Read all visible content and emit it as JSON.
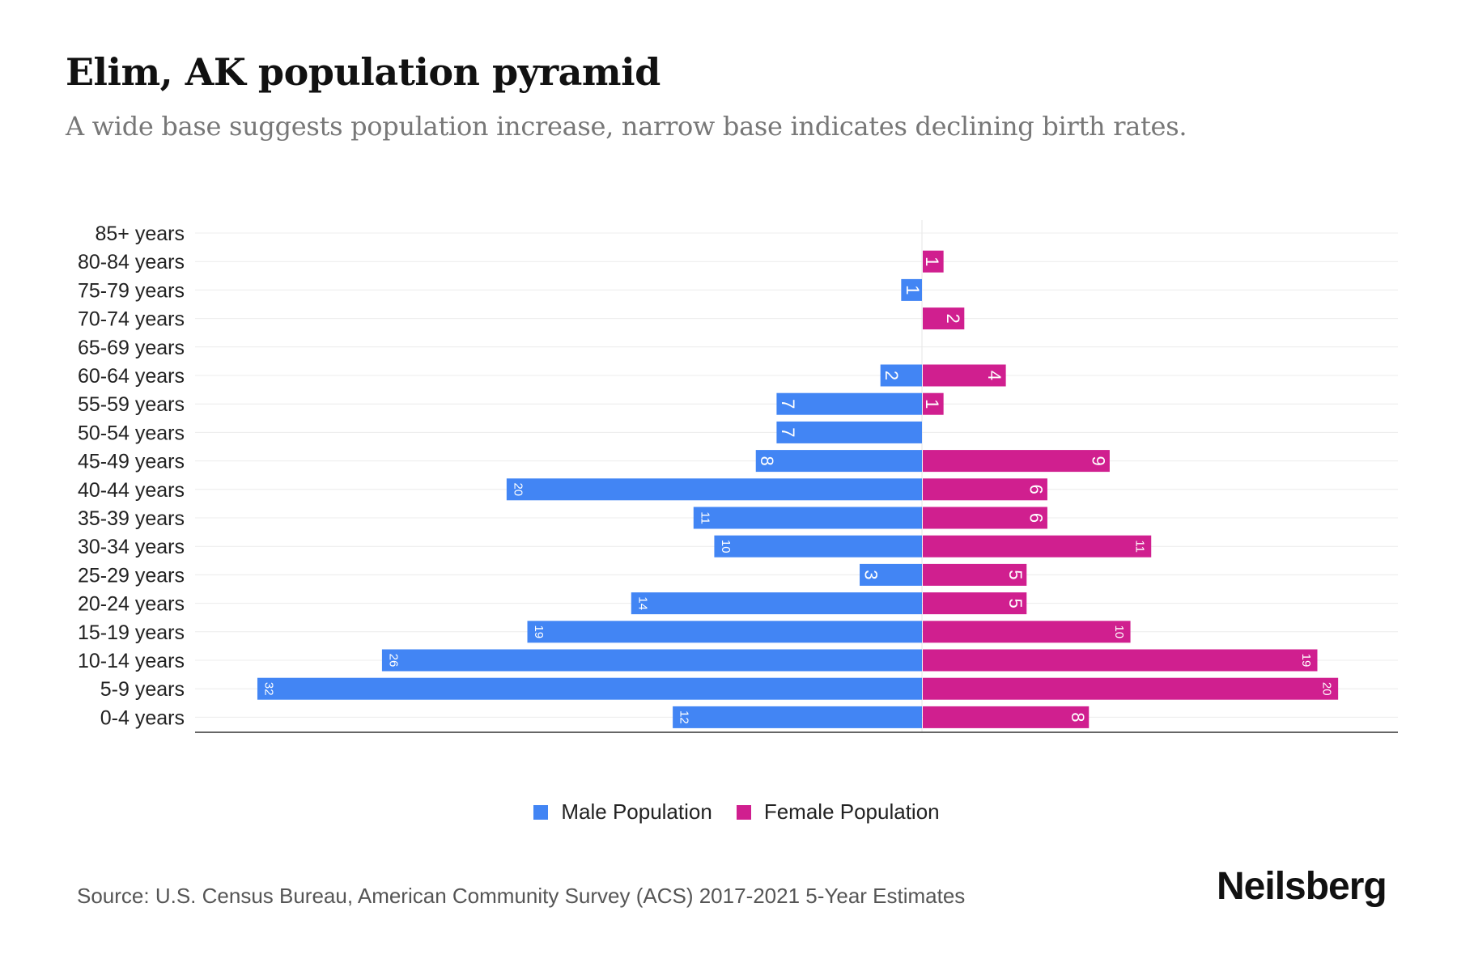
{
  "title": "Elim, AK population pyramid",
  "subtitle": "A wide base suggests population increase, narrow base indicates declining birth rates.",
  "source": "Source: U.S. Census Bureau, American Community Survey (ACS) 2017-2021 5-Year Estimates",
  "logo": "Neilsberg",
  "colors": {
    "male": "#4285f4",
    "female": "#d01f8f"
  },
  "chart_data": {
    "type": "bar",
    "orientation": "horizontal-pyramid",
    "title": "Elim, AK population pyramid",
    "categories": [
      "85+ years",
      "80-84 years",
      "75-79 years",
      "70-74 years",
      "65-69 years",
      "60-64 years",
      "55-59 years",
      "50-54 years",
      "45-49 years",
      "40-44 years",
      "35-39 years",
      "30-34 years",
      "25-29 years",
      "20-24 years",
      "15-19 years",
      "10-14 years",
      "5-9 years",
      "0-4 years"
    ],
    "series": [
      {
        "name": "Male Population",
        "values": [
          0,
          0,
          1,
          0,
          0,
          2,
          7,
          7,
          8,
          20,
          11,
          10,
          3,
          14,
          19,
          26,
          32,
          12
        ]
      },
      {
        "name": "Female Population",
        "values": [
          0,
          1,
          0,
          2,
          0,
          4,
          1,
          0,
          9,
          6,
          6,
          11,
          5,
          5,
          10,
          19,
          20,
          8
        ]
      }
    ],
    "xlim": [
      -35,
      23
    ],
    "grid": true,
    "legend": "bottom-center"
  }
}
